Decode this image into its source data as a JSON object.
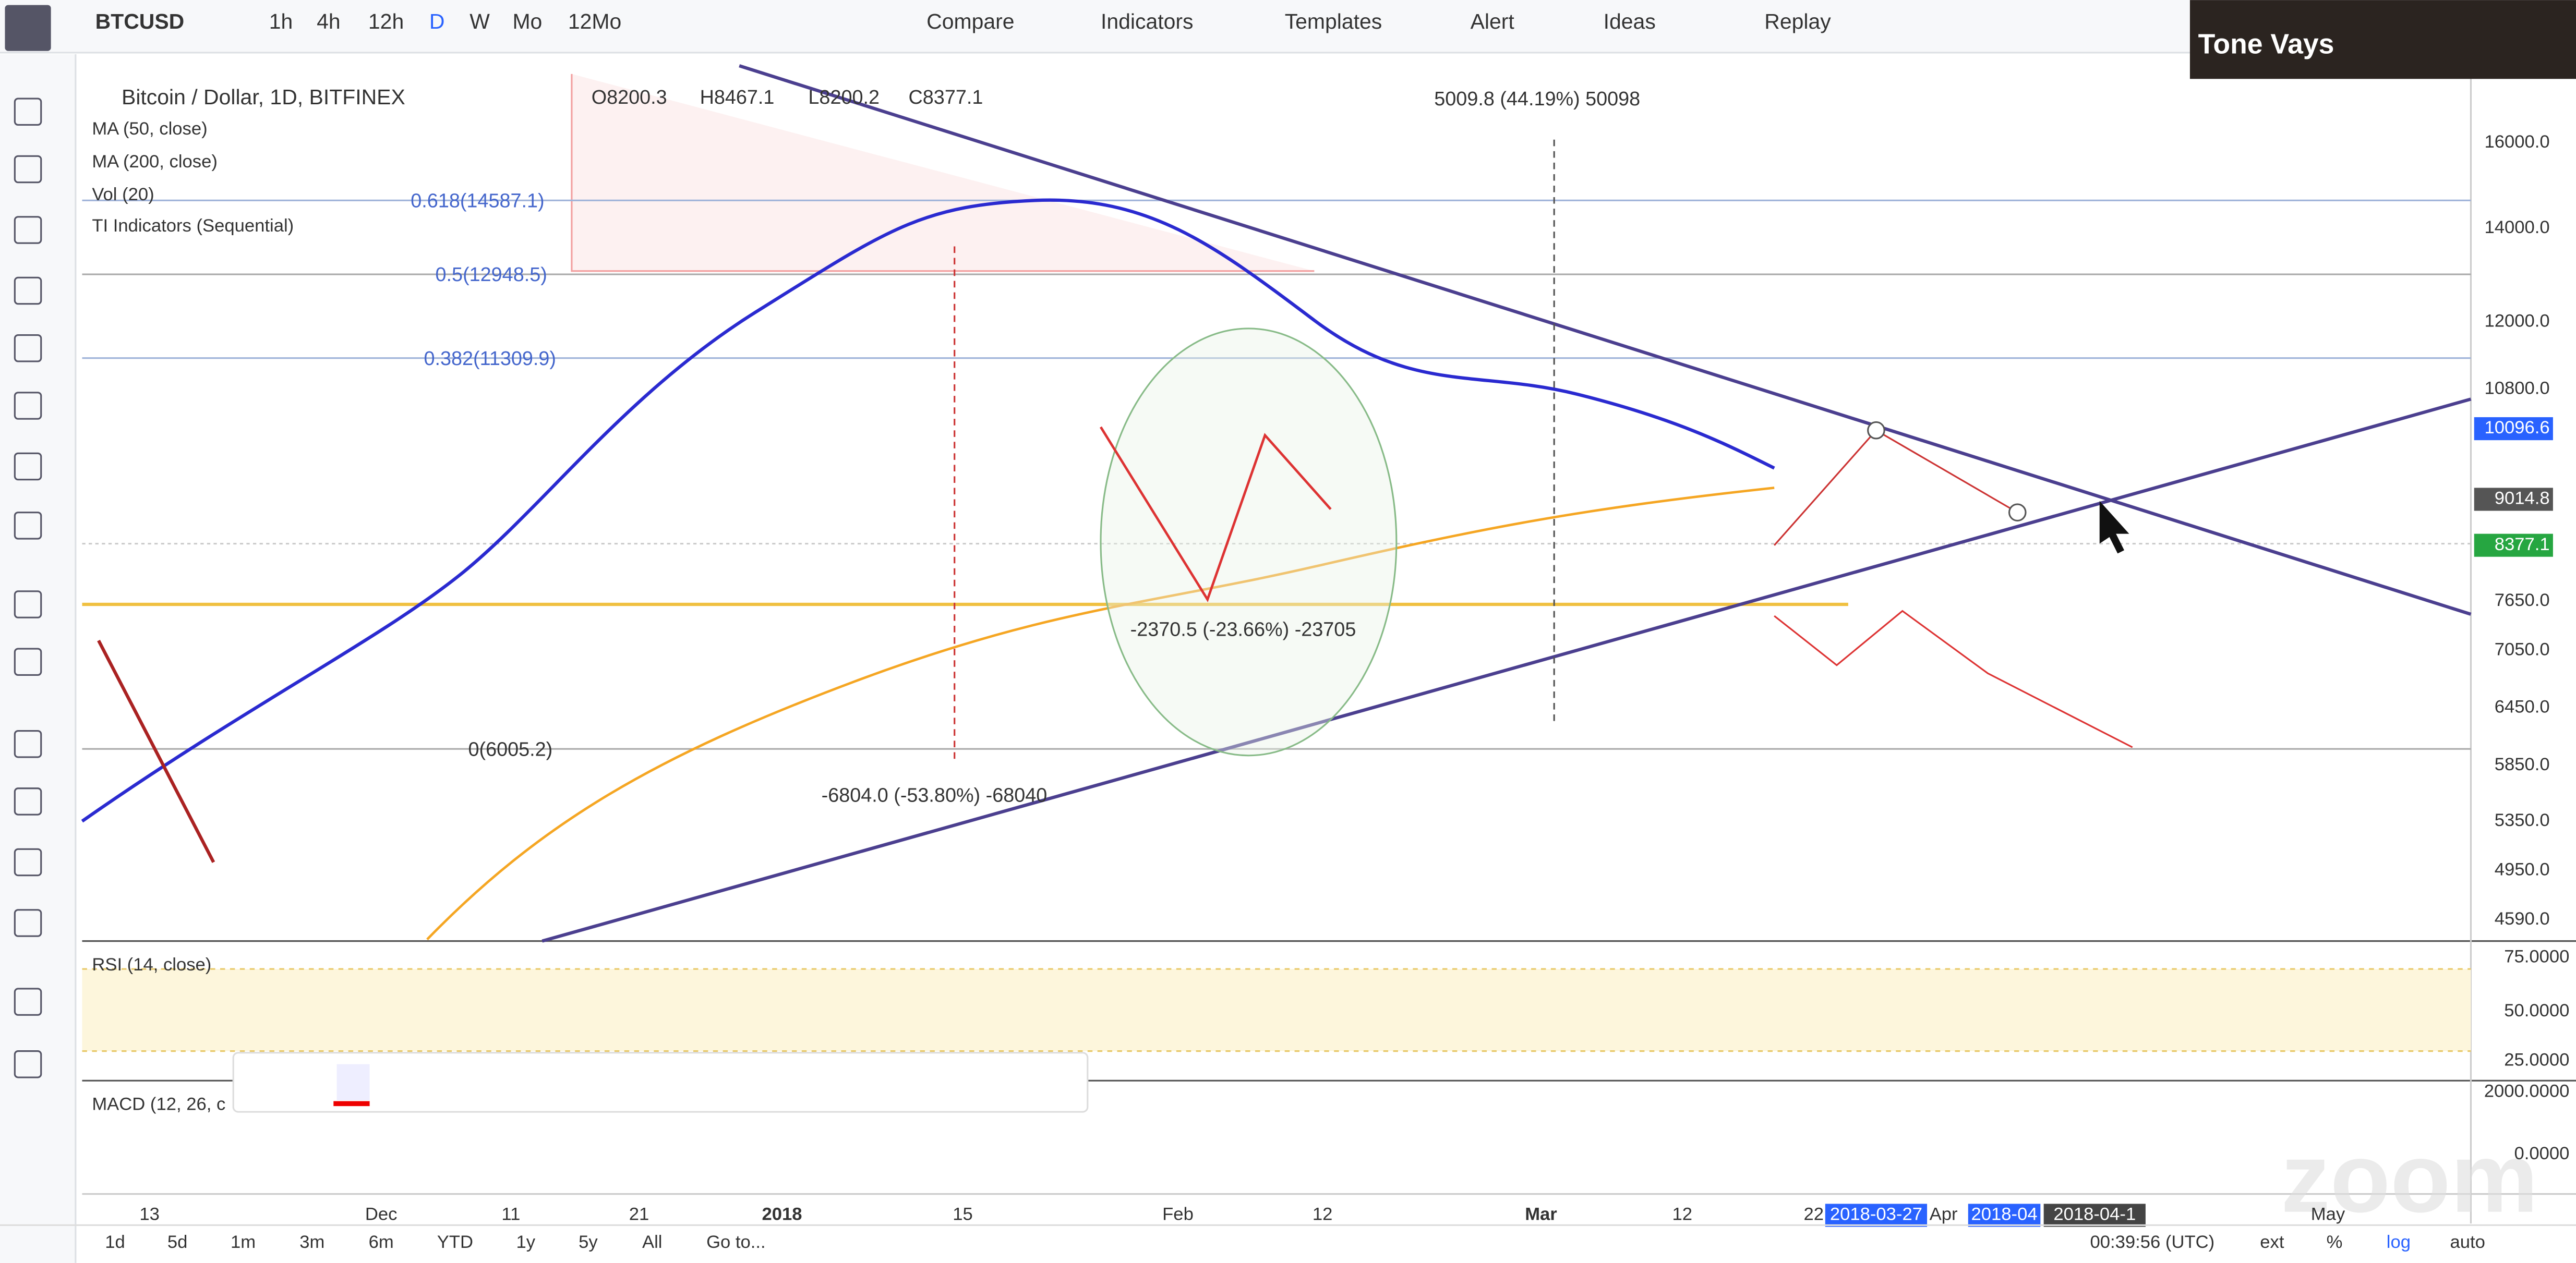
{
  "toolbar": {
    "symbol": "BTCUSD",
    "intervals": [
      "1h",
      "4h",
      "12h",
      "D",
      "W",
      "Mo",
      "12Mo"
    ],
    "buttons": [
      "Compare",
      "Indicators",
      "Templates",
      "Alert",
      "Ideas",
      "Replay"
    ]
  },
  "video": {
    "name": "Tone Vays"
  },
  "legend": {
    "title": "Bitcoin / Dollar, 1D, BITFINEX",
    "ohlc": [
      "O8200.3",
      "H8467.1",
      "L8200.2",
      "C8377.1"
    ],
    "indicators": [
      "MA (50, close)",
      "MA (200, close)",
      "Vol (20)",
      "TI Indicators (Sequential)"
    ]
  },
  "annotations": {
    "rise": "5009.8 (44.19%) 50098",
    "fib_618": "0.618(14587.1)",
    "fib_5": "0.5(12948.5)",
    "fib_382": "0.382(11309.9)",
    "fib_0": "0(6005.2)",
    "drop_small": "-2370.5 (-23.66%) -23705",
    "drop_big": "-6804.0 (-53.80%) -68040"
  },
  "price_axis": [
    "16000.0",
    "14000.0",
    "12000.0",
    "10800.0",
    "10096.6",
    "9014.8",
    "8377.1",
    "7650.0",
    "7050.0",
    "6450.0",
    "5850.0",
    "5350.0",
    "4950.0",
    "4590.0"
  ],
  "rsi": {
    "label": "RSI (14, close)",
    "axis": [
      "75.0000",
      "50.0000",
      "25.0000"
    ]
  },
  "macd": {
    "label": "MACD (12, 26, c",
    "axis": [
      "2000.0000",
      "0.0000"
    ]
  },
  "time_axis": [
    "13",
    "Dec",
    "11",
    "21",
    "2018",
    "15",
    "Feb",
    "12",
    "Mar",
    "12",
    "22",
    "2018-03-27",
    "Apr",
    "2018-04",
    "2018-04-1",
    "May"
  ],
  "bottom_bar": {
    "ranges": [
      "1d",
      "5d",
      "1m",
      "3m",
      "6m",
      "YTD",
      "1y",
      "5y",
      "All",
      "Go to..."
    ],
    "clock": "00:39:56 (UTC)",
    "options": [
      "ext",
      "%",
      "log",
      "auto"
    ]
  }
}
